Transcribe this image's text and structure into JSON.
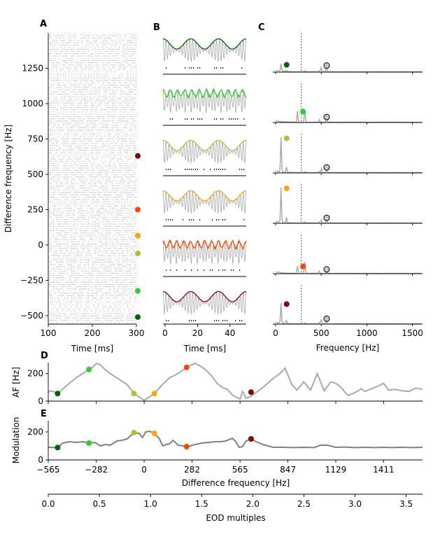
{
  "panel_labels": [
    "A",
    "B",
    "C",
    "D",
    "E"
  ],
  "colors": {
    "c0": "#006400",
    "c1": "#32cd32",
    "c2": "#9acd32",
    "c3": "#ffa500",
    "c4": "#ff4500",
    "c5": "#8b0000",
    "gray": "#aaaaaa",
    "dark_gray": "#808080"
  },
  "chart_data": [
    {
      "panel": "A",
      "type": "scatter",
      "xlabel": "Time [ms]",
      "ylabel": "Difference frequency [Hz]",
      "xlim": [
        100,
        300
      ],
      "ylim": [
        1500,
        -560
      ],
      "xticks": [
        "100",
        "200",
        "300"
      ],
      "yticks": [
        "−500",
        "−250",
        "0",
        "250",
        "500",
        "750",
        "1000",
        "1250"
      ],
      "ytick_values": [
        -500,
        -250,
        0,
        250,
        500,
        750,
        1000,
        1250
      ],
      "markers": [
        {
          "y": -510,
          "color": "#006400"
        },
        {
          "y": -325,
          "color": "#32cd32"
        },
        {
          "y": -60,
          "color": "#9acd32"
        },
        {
          "y": 65,
          "color": "#ffa500"
        },
        {
          "y": 250,
          "color": "#ff4500"
        },
        {
          "y": 630,
          "color": "#8b0000"
        }
      ]
    },
    {
      "panel": "B",
      "type": "line",
      "xlabel": "Time [ms]",
      "xlim": [
        0,
        50
      ],
      "xticks": [
        "0",
        "20",
        "40"
      ],
      "xtick_values": [
        0,
        20,
        40
      ],
      "traces": [
        {
          "color": "#006400",
          "beat_freq": 60,
          "carrier_freq": 560,
          "envelope": "smooth"
        },
        {
          "color": "#32cd32",
          "beat_freq": 230,
          "carrier_freq": 560,
          "envelope": "jagged"
        },
        {
          "color": "#9acd32",
          "beat_freq": 60,
          "carrier_freq": 560,
          "envelope": "smooth"
        },
        {
          "color": "#ffa500",
          "beat_freq": 60,
          "carrier_freq": 560,
          "envelope": "smooth"
        },
        {
          "color": "#ff4500",
          "beat_freq": 240,
          "carrier_freq": 560,
          "envelope": "jagged"
        },
        {
          "color": "#8b0000",
          "beat_freq": 60,
          "carrier_freq": 560,
          "envelope": "smooth"
        }
      ]
    },
    {
      "panel": "C",
      "type": "line",
      "xlabel": "Frequency [Hz]",
      "xlim": [
        -30,
        1610
      ],
      "xticks": [
        "0",
        "500",
        "1000",
        "1500"
      ],
      "xtick_values": [
        0,
        500,
        1000,
        1500
      ],
      "reference_line": 283,
      "spectra": [
        {
          "color": "#006400",
          "peak_x": 60,
          "peak_y": 0.2,
          "eod_y": 0.18
        },
        {
          "color": "#32cd32",
          "peak_x": 240,
          "peak_y": 0.3,
          "eod_y": 0.15
        },
        {
          "color": "#9acd32",
          "peak_x": 60,
          "peak_y": 0.95,
          "eod_y": 0.15
        },
        {
          "color": "#ffa500",
          "peak_x": 60,
          "peak_y": 0.96,
          "eod_y": 0.15
        },
        {
          "color": "#ff4500",
          "peak_x": 240,
          "peak_y": 0.2,
          "eod_y": 0.12
        },
        {
          "color": "#8b0000",
          "peak_x": 60,
          "peak_y": 0.55,
          "eod_y": 0.15
        }
      ]
    },
    {
      "panel": "D",
      "type": "line",
      "ylabel": "AF [Hz]",
      "xlim": [
        -565,
        1640
      ],
      "ylim": [
        0,
        280
      ],
      "yticks": [
        "0",
        "200"
      ],
      "ytick_values": [
        0,
        200
      ],
      "x": [
        -565,
        -550,
        -530,
        -510,
        -450,
        -400,
        -350,
        -325,
        -300,
        -282,
        -260,
        -240,
        -200,
        -150,
        -100,
        -60,
        -30,
        0,
        30,
        60,
        100,
        150,
        200,
        250,
        282,
        300,
        330,
        360,
        400,
        430,
        460,
        490,
        520,
        540,
        565,
        580,
        600,
        630,
        700,
        760,
        800,
        830,
        870,
        900,
        940,
        980,
        1020,
        1060,
        1100,
        1129,
        1160,
        1200,
        1240,
        1280,
        1300,
        1340,
        1380,
        1411,
        1440,
        1480,
        1520,
        1560,
        1600,
        1640
      ],
      "y": [
        65,
        75,
        68,
        55,
        120,
        170,
        210,
        230,
        250,
        275,
        265,
        240,
        200,
        160,
        120,
        55,
        30,
        5,
        30,
        55,
        110,
        170,
        200,
        245,
        265,
        275,
        255,
        230,
        180,
        130,
        100,
        85,
        45,
        30,
        15,
        70,
        20,
        35,
        100,
        165,
        200,
        240,
        120,
        80,
        140,
        80,
        200,
        75,
        140,
        130,
        100,
        40,
        60,
        90,
        70,
        90,
        110,
        130,
        80,
        85,
        75,
        70,
        95,
        85
      ],
      "markers": [
        {
          "x": -510,
          "y": 55,
          "color": "#006400"
        },
        {
          "x": -325,
          "y": 230,
          "color": "#32cd32"
        },
        {
          "x": -60,
          "y": 55,
          "color": "#9acd32"
        },
        {
          "x": 60,
          "y": 55,
          "color": "#ffa500"
        },
        {
          "x": 250,
          "y": 245,
          "color": "#ff4500"
        },
        {
          "x": 630,
          "y": 65,
          "color": "#8b0000"
        }
      ]
    },
    {
      "panel": "E",
      "type": "line",
      "xlabel": "Difference frequency [Hz]",
      "ylabel": "Modulation",
      "xlim": [
        -565,
        1640
      ],
      "ylim": [
        0,
        280
      ],
      "yticks": [
        "0",
        "200"
      ],
      "ytick_values": [
        0,
        200
      ],
      "xticks": [
        "−565",
        "−282",
        "0",
        "282",
        "565",
        "847",
        "1129",
        "1411"
      ],
      "xtick_values": [
        -565,
        -282,
        0,
        282,
        565,
        847,
        1129,
        1411
      ],
      "x": [
        -565,
        -530,
        -510,
        -480,
        -440,
        -400,
        -360,
        -325,
        -290,
        -260,
        -230,
        -200,
        -160,
        -130,
        -100,
        -60,
        -30,
        -10,
        10,
        30,
        60,
        90,
        110,
        130,
        150,
        170,
        200,
        230,
        250,
        270,
        300,
        340,
        380,
        420,
        450,
        480,
        520,
        540,
        560,
        580,
        600,
        630,
        660,
        700,
        760,
        820,
        880,
        940,
        1000,
        1040,
        1080,
        1129,
        1180,
        1240,
        1300,
        1360,
        1411,
        1460,
        1520,
        1580,
        1640
      ],
      "y": [
        90,
        88,
        88,
        120,
        130,
        125,
        130,
        120,
        125,
        100,
        110,
        105,
        135,
        140,
        150,
        195,
        190,
        160,
        200,
        205,
        190,
        150,
        100,
        110,
        115,
        140,
        105,
        100,
        95,
        100,
        110,
        120,
        125,
        130,
        130,
        135,
        155,
        130,
        90,
        95,
        135,
        150,
        130,
        110,
        90,
        90,
        88,
        90,
        88,
        105,
        105,
        90,
        92,
        88,
        90,
        88,
        90,
        88,
        90,
        88,
        90
      ],
      "markers": [
        {
          "x": -510,
          "y": 88,
          "color": "#006400"
        },
        {
          "x": -325,
          "y": 120,
          "color": "#32cd32"
        },
        {
          "x": -60,
          "y": 195,
          "color": "#9acd32"
        },
        {
          "x": 60,
          "y": 190,
          "color": "#ffa500"
        },
        {
          "x": 250,
          "y": 95,
          "color": "#ff4500"
        },
        {
          "x": 630,
          "y": 150,
          "color": "#8b0000"
        }
      ]
    },
    {
      "panel": "EOD axis",
      "type": "line",
      "xlabel": "EOD multiples",
      "xlim": [
        0,
        3.66
      ],
      "xticks": [
        "0.0",
        "0.5",
        "1.0",
        "1.5",
        "2.0",
        "2.5",
        "3.0",
        "3.5"
      ],
      "xtick_values": [
        0,
        0.5,
        1.0,
        1.5,
        2.0,
        2.5,
        3.0,
        3.5
      ]
    }
  ]
}
